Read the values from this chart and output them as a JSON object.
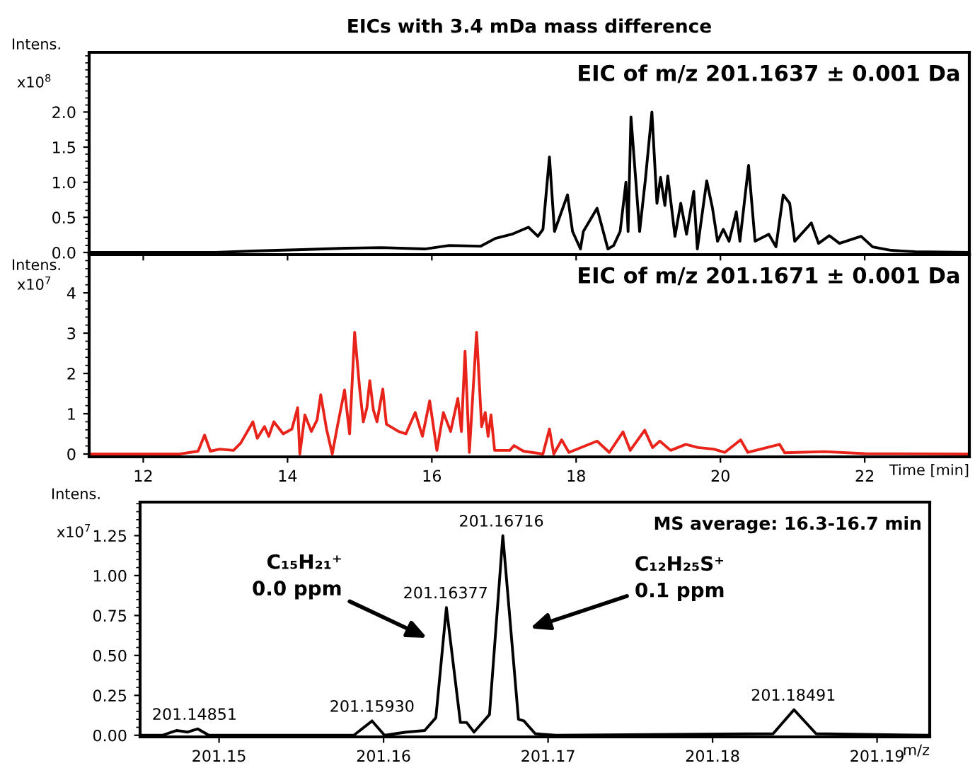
{
  "chart_data": [
    {
      "type": "line",
      "title": "EICs with 3.4 mDa mass difference",
      "ylabel": "Intens.",
      "annotations": [
        "x10$^{8}$",
        "EIC of m/z 201.1637 ± 0.001 Da"
      ],
      "tick_labels": "y",
      "grid": false,
      "legend": false,
      "xlim": [
        11.25,
        23.45
      ],
      "xticks": [
        {
          "value": 12,
          "label": null
        },
        {
          "value": 14,
          "label": null
        },
        {
          "value": 16,
          "label": null
        },
        {
          "value": 18,
          "label": null
        },
        {
          "value": 20,
          "label": null
        },
        {
          "value": 22,
          "label": null
        }
      ],
      "ylim": [
        -0.03,
        2.85
      ],
      "yticks": [
        {
          "value": 0,
          "label": "0.0"
        },
        {
          "value": 0.5,
          "label": "0.5"
        },
        {
          "value": 1,
          "label": "1.0"
        },
        {
          "value": 1.5,
          "label": "1.5"
        },
        {
          "value": 2,
          "label": "2.0"
        }
      ],
      "series": [
        {
          "color": "#000000",
          "x": [
            11.25,
            13.0,
            13.5,
            14.2,
            14.8,
            15.3,
            15.9,
            16.24,
            16.68,
            16.88,
            17.11,
            17.34,
            17.47,
            17.54,
            17.63,
            17.7,
            17.88,
            17.95,
            18.06,
            18.1,
            18.29,
            18.44,
            18.52,
            18.61,
            18.69,
            18.72,
            18.76,
            18.88,
            18.96,
            19.05,
            19.12,
            19.17,
            19.23,
            19.27,
            19.37,
            19.45,
            19.53,
            19.63,
            19.68,
            19.81,
            19.89,
            19.96,
            20.04,
            20.12,
            20.22,
            20.27,
            20.39,
            20.48,
            20.67,
            20.77,
            20.87,
            20.96,
            21.03,
            21.26,
            21.36,
            21.51,
            21.65,
            21.95,
            22.11,
            22.37,
            22.7,
            23.45
          ],
          "values": [
            0,
            0,
            0.02,
            0.04,
            0.06,
            0.07,
            0.05,
            0.1,
            0.09,
            0.2,
            0.26,
            0.36,
            0.23,
            0.33,
            1.36,
            0.3,
            0.82,
            0.3,
            0.05,
            0.3,
            0.63,
            0.05,
            0.1,
            0.3,
            1.0,
            0.3,
            1.93,
            0.3,
            1.04,
            2.0,
            0.7,
            1.07,
            0.67,
            1.09,
            0.23,
            0.7,
            0.26,
            0.87,
            0.05,
            1.02,
            0.63,
            0.16,
            0.33,
            0.16,
            0.58,
            0.16,
            1.24,
            0.16,
            0.26,
            0.08,
            0.82,
            0.7,
            0.16,
            0.42,
            0.13,
            0.24,
            0.13,
            0.23,
            0.08,
            0.03,
            0.01,
            0
          ]
        }
      ]
    },
    {
      "type": "line",
      "xlabel": "Time [min]",
      "ylabel": "Intens.",
      "annotations": [
        "x10$^{7}$",
        "EIC of m/z 201.1671 ± 0.001 Da"
      ],
      "grid": false,
      "legend": false,
      "xlim": [
        11.25,
        23.45
      ],
      "xticks": [
        12,
        14,
        16,
        18,
        20,
        22
      ],
      "ylim": [
        -0.07,
        4.95
      ],
      "yticks": [
        0,
        1,
        2,
        3,
        4
      ],
      "series": [
        {
          "color": "#e8231a",
          "x": [
            11.25,
            12.5,
            12.76,
            12.85,
            12.93,
            13.06,
            13.25,
            13.35,
            13.52,
            13.58,
            13.68,
            13.74,
            13.81,
            13.94,
            14.06,
            14.14,
            14.17,
            14.24,
            14.33,
            14.41,
            14.46,
            14.54,
            14.62,
            14.69,
            14.79,
            14.86,
            14.93,
            15.0,
            15.05,
            15.1,
            15.14,
            15.19,
            15.24,
            15.32,
            15.37,
            15.54,
            15.64,
            15.77,
            15.87,
            15.97,
            16.07,
            16.16,
            16.26,
            16.36,
            16.41,
            16.46,
            16.52,
            16.62,
            16.69,
            16.74,
            16.78,
            16.82,
            16.87,
            17.08,
            17.14,
            17.27,
            17.54,
            17.63,
            17.69,
            17.8,
            17.9,
            18.29,
            18.46,
            18.65,
            18.75,
            18.95,
            19.06,
            19.16,
            19.31,
            19.52,
            19.69,
            19.91,
            20.06,
            20.28,
            20.38,
            20.82,
            20.89,
            21.44,
            22.0,
            23.45
          ],
          "values": [
            0,
            0,
            0.07,
            0.47,
            0.07,
            0.12,
            0.09,
            0.27,
            0.8,
            0.39,
            0.68,
            0.44,
            0.8,
            0.5,
            0.62,
            1.15,
            0,
            0.97,
            0.56,
            0.85,
            1.47,
            0.62,
            0,
            0.68,
            1.59,
            0.5,
            3.02,
            1.61,
            0.8,
            1.15,
            1.82,
            1.09,
            0.8,
            1.61,
            0.74,
            0.56,
            0.5,
            1.03,
            0.44,
            1.32,
            0.09,
            1.03,
            0.56,
            1.38,
            0.56,
            2.55,
            0.04,
            3.02,
            0.68,
            1.03,
            0.44,
            0.97,
            0.09,
            0.09,
            0.21,
            0.07,
            0,
            0.62,
            0,
            0.35,
            0.04,
            0.32,
            0.04,
            0.55,
            0.09,
            0.59,
            0.16,
            0.32,
            0.09,
            0.24,
            0.16,
            0.12,
            0.04,
            0.35,
            0.04,
            0.24,
            0.03,
            0.06,
            0.01,
            0
          ]
        }
      ]
    },
    {
      "type": "line",
      "xlabel": "m/z",
      "ylabel": "Intens.",
      "grid": false,
      "legend": false,
      "xlim": [
        201.1452,
        201.1932
      ],
      "xticks": [
        201.15,
        201.16,
        201.17,
        201.18,
        201.19
      ],
      "ylim": [
        -0.01,
        1.46
      ],
      "yticks": [
        {
          "value": 0,
          "label": "0.00"
        },
        {
          "value": 0.25,
          "label": "0.25"
        },
        {
          "value": 0.5,
          "label": "0.50"
        },
        {
          "value": 0.75,
          "label": "0.75"
        },
        {
          "value": 1,
          "label": "1.00"
        },
        {
          "value": 1.25,
          "label": "1.25"
        }
      ],
      "annotations": [
        "x10$^{7}$",
        "MS average: 16.3-16.7 min",
        {
          "text": "201.14851",
          "x": 201.14851,
          "y": 0.04
        },
        {
          "text": "201.15930",
          "x": 201.1593,
          "y": 0.09
        },
        {
          "text": "201.16377",
          "x": 201.16377,
          "y": 0.8
        },
        {
          "text": "201.16716",
          "x": 201.16716,
          "y": 1.25
        },
        {
          "text": "201.18491",
          "x": 201.18491,
          "y": 0.16
        },
        "C₁₅H₂₁⁺\n0.0 ppm",
        "C₁₂H₂₅S⁺\n0.1 ppm"
      ],
      "series": [
        {
          "color": "#000000",
          "x": [
            201.1452,
            201.14655,
            201.14743,
            201.14809,
            201.14871,
            201.14938,
            201.15819,
            201.1593,
            201.16006,
            201.16138,
            201.1625,
            201.16318,
            201.16382,
            201.16467,
            201.16505,
            201.1655,
            201.16644,
            201.16725,
            201.1682,
            201.16853,
            201.16922,
            201.17048,
            201.18368,
            201.18495,
            201.18629,
            201.1932
          ],
          "values": [
            0,
            0,
            0.03,
            0.02,
            0.04,
            0,
            0,
            0.09,
            0,
            0.02,
            0.03,
            0.11,
            0.8,
            0.08,
            0.08,
            0.02,
            0.13,
            1.25,
            0.1,
            0.09,
            0.01,
            0,
            0.01,
            0.16,
            0.01,
            0
          ]
        }
      ]
    }
  ]
}
